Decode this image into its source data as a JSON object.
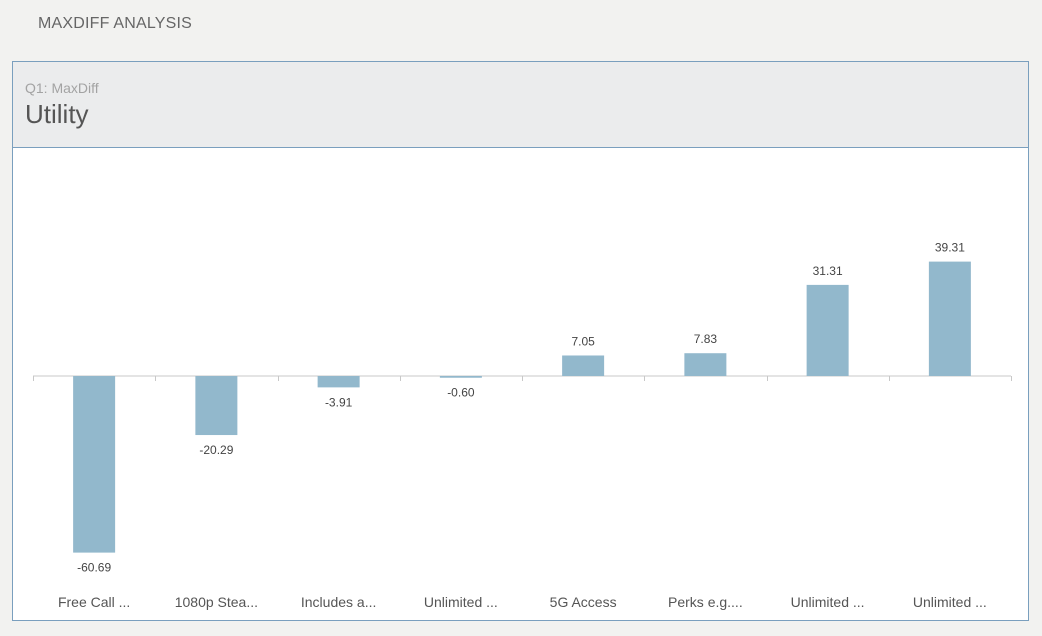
{
  "page": {
    "heading": "MAXDIFF ANALYSIS"
  },
  "card": {
    "subtitle": "Q1: MaxDiff",
    "title": "Utility"
  },
  "colors": {
    "bar": "#92b8cc",
    "axis": "#c8c8c8",
    "border": "#7a9fbe",
    "header_bg": "#ebeced"
  },
  "chart_data": {
    "type": "bar",
    "categories": [
      "Free Call ...",
      "1080p Stea...",
      "Includes a...",
      "Unlimited ...",
      "5G Access",
      "Perks e.g....",
      "Unlimited ...",
      "Unlimited ..."
    ],
    "values": [
      -60.69,
      -20.29,
      -3.91,
      -0.6,
      7.05,
      7.83,
      31.31,
      39.31
    ],
    "value_labels": [
      "-60.69",
      "-20.29",
      "-3.91",
      "-0.60",
      "7.05",
      "7.83",
      "31.31",
      "39.31"
    ],
    "title": "",
    "xlabel": "",
    "ylabel": "",
    "grid": false,
    "legend": "none"
  }
}
